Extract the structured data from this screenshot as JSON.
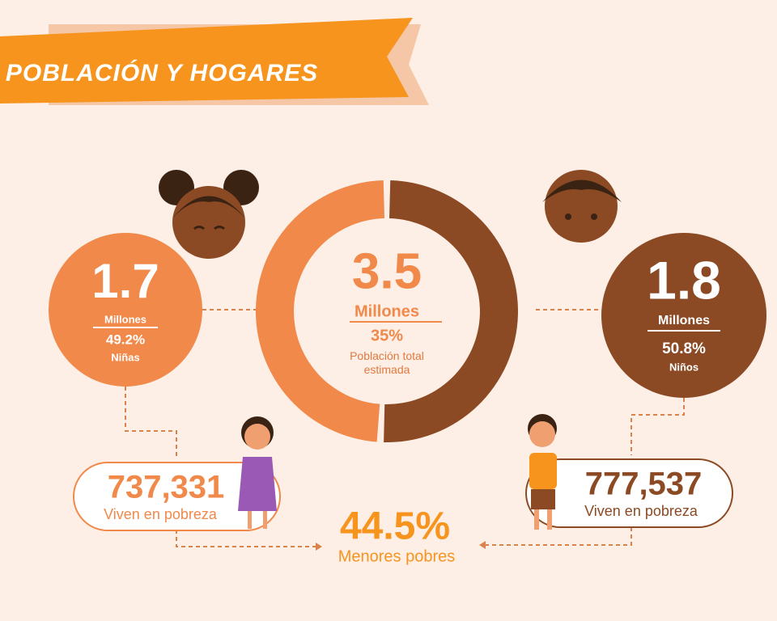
{
  "header": {
    "title": "POBLACIÓN Y HOGARES"
  },
  "total": {
    "number": "3.5",
    "unit": "Millones",
    "share": "35%",
    "label": "Población total estimada"
  },
  "girls": {
    "number": "1.7",
    "unit": "Millones",
    "share": {
      "value": 49.2,
      "label": "49.2%"
    },
    "label": "Niñas",
    "color": "#f0894a",
    "poverty": {
      "number": "737,331",
      "label": "Viven en pobreza"
    }
  },
  "boys": {
    "number": "1.8",
    "unit": "Millones",
    "share": {
      "value": 50.8,
      "label": "50.8%"
    },
    "label": "Niños",
    "color": "#8b4a23",
    "poverty": {
      "number": "777,537",
      "label": "Viven en pobreza"
    }
  },
  "poor_minors": {
    "number": "44.5%",
    "label": "Menores pobres"
  }
}
